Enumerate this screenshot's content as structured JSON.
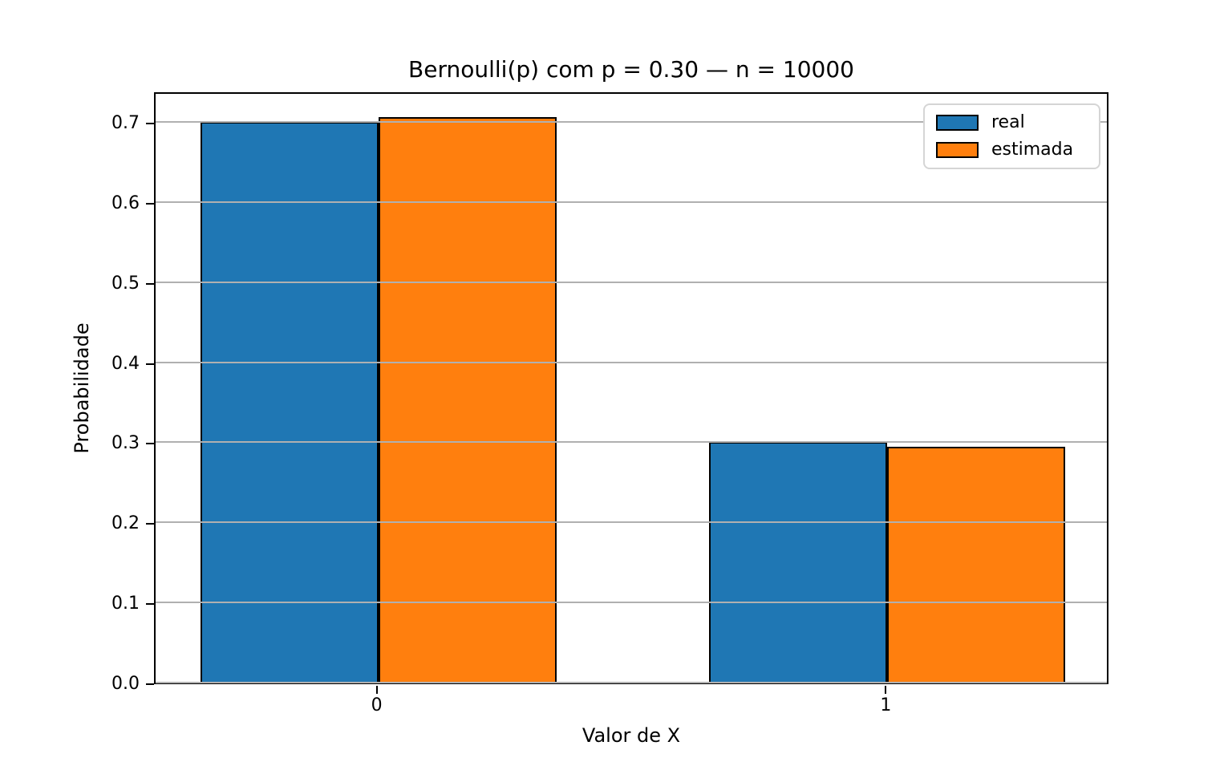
{
  "title": "Bernoulli(p) com p = 0.30 — n = 10000",
  "chart_data": {
    "type": "bar",
    "categories": [
      "0",
      "1"
    ],
    "series": [
      {
        "name": "real",
        "color": "#1f77b4",
        "values": [
          0.7,
          0.3
        ]
      },
      {
        "name": "estimada",
        "color": "#ff7f0e",
        "values": [
          0.706,
          0.294
        ]
      }
    ],
    "xlabel": "Valor de X",
    "ylabel": "Probabilidade",
    "ylim": [
      0.0,
      0.739
    ],
    "yticks": [
      0.0,
      0.1,
      0.2,
      0.3,
      0.4,
      0.5,
      0.6,
      0.7
    ],
    "ytick_labels": [
      "0.0",
      "0.1",
      "0.2",
      "0.3",
      "0.4",
      "0.5",
      "0.6",
      "0.7"
    ],
    "bar_width": 0.35,
    "grid": "horizontal",
    "gridline_color": "#b0b0b0",
    "bar_edge_color": "#000000",
    "legend_position": "upper right",
    "legend": [
      "real",
      "estimada"
    ]
  }
}
